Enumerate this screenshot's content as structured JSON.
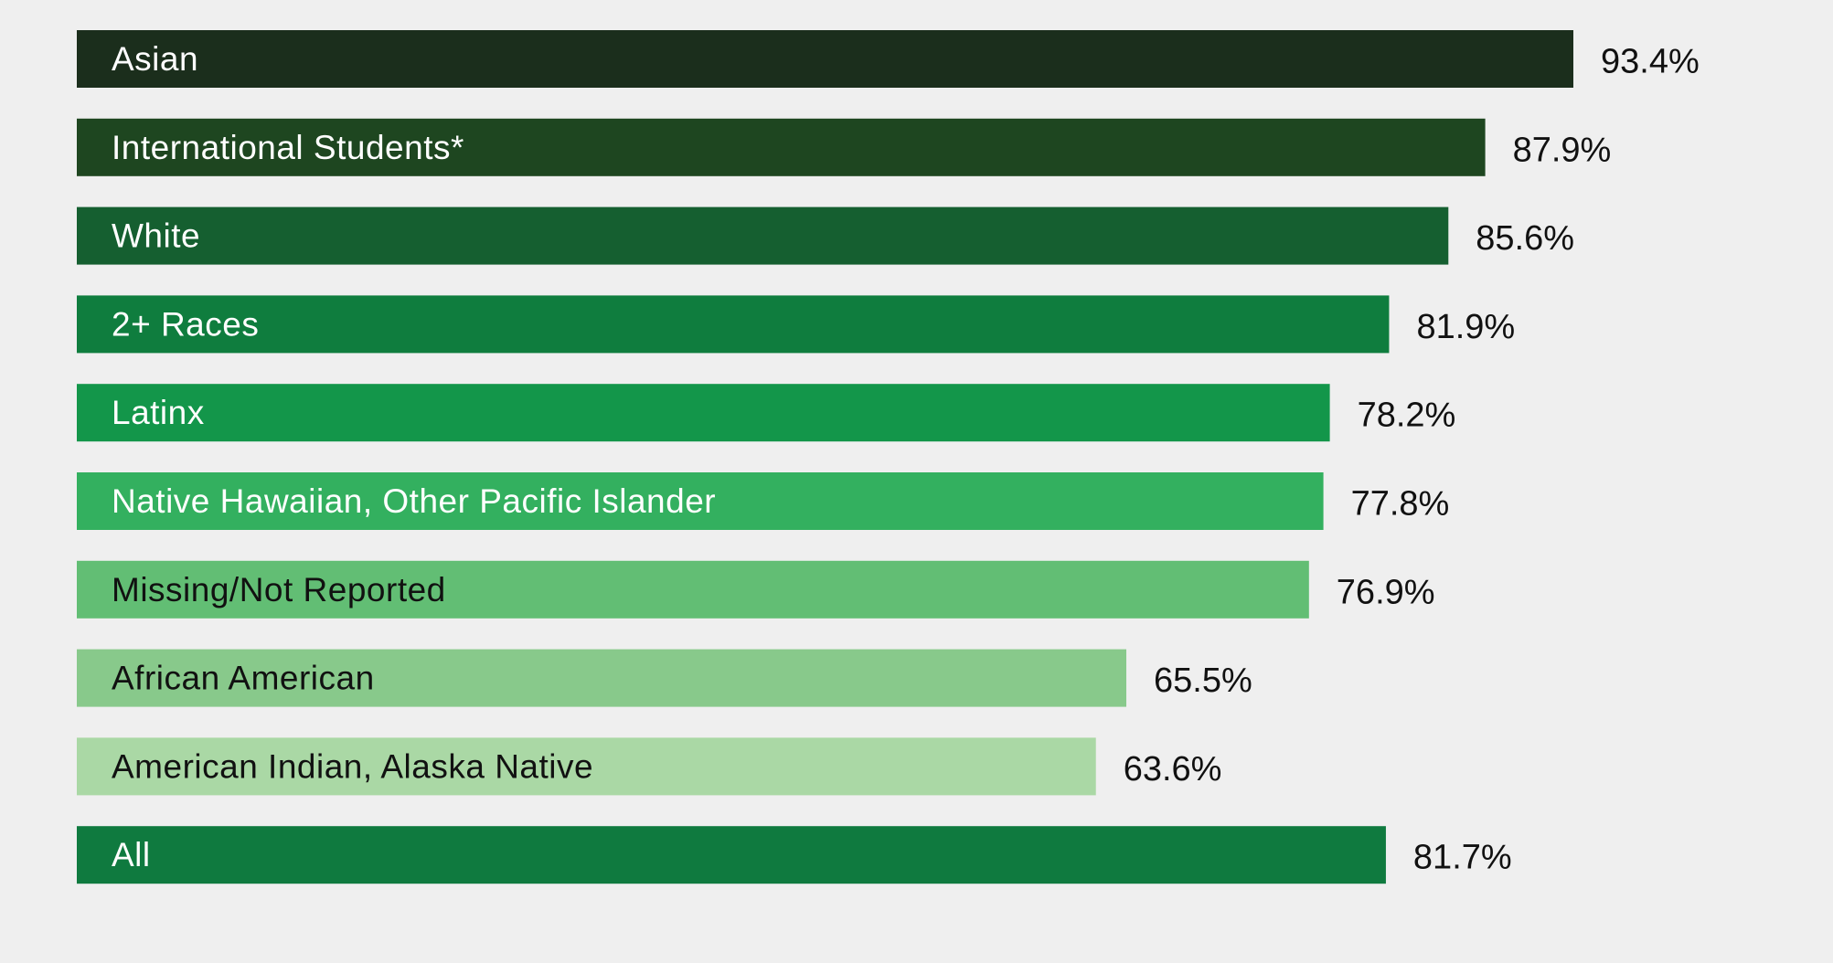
{
  "chart_data": {
    "type": "bar",
    "orientation": "horizontal",
    "title": "",
    "xlabel": "",
    "ylabel": "",
    "xlim": [
      0,
      100
    ],
    "categories": [
      "Asian",
      "International Students*",
      "White",
      "2+ Races",
      "Latinx",
      "Native Hawaiian, Other Pacific Islander",
      "Missing/Not Reported",
      "African American",
      "American Indian, Alaska Native",
      "All"
    ],
    "values": [
      93.4,
      87.9,
      85.6,
      81.9,
      78.2,
      77.8,
      76.9,
      65.5,
      63.6,
      81.7
    ],
    "value_labels": [
      "93.4%",
      "87.9%",
      "85.6%",
      "81.9%",
      "78.2%",
      "77.8%",
      "76.9%",
      "65.5%",
      "63.6%",
      "81.7%"
    ],
    "bar_colors": [
      "#1b2e1c",
      "#1e4620",
      "#155f30",
      "#0f7d3e",
      "#13964a",
      "#33b05f",
      "#62be74",
      "#88c98b",
      "#aad8a5",
      "#0f7a3f"
    ],
    "label_colors": [
      "#ffffff",
      "#ffffff",
      "#ffffff",
      "#ffffff",
      "#ffffff",
      "#ffffff",
      "#111111",
      "#111111",
      "#111111",
      "#ffffff"
    ],
    "grid": false,
    "legend": "none"
  }
}
